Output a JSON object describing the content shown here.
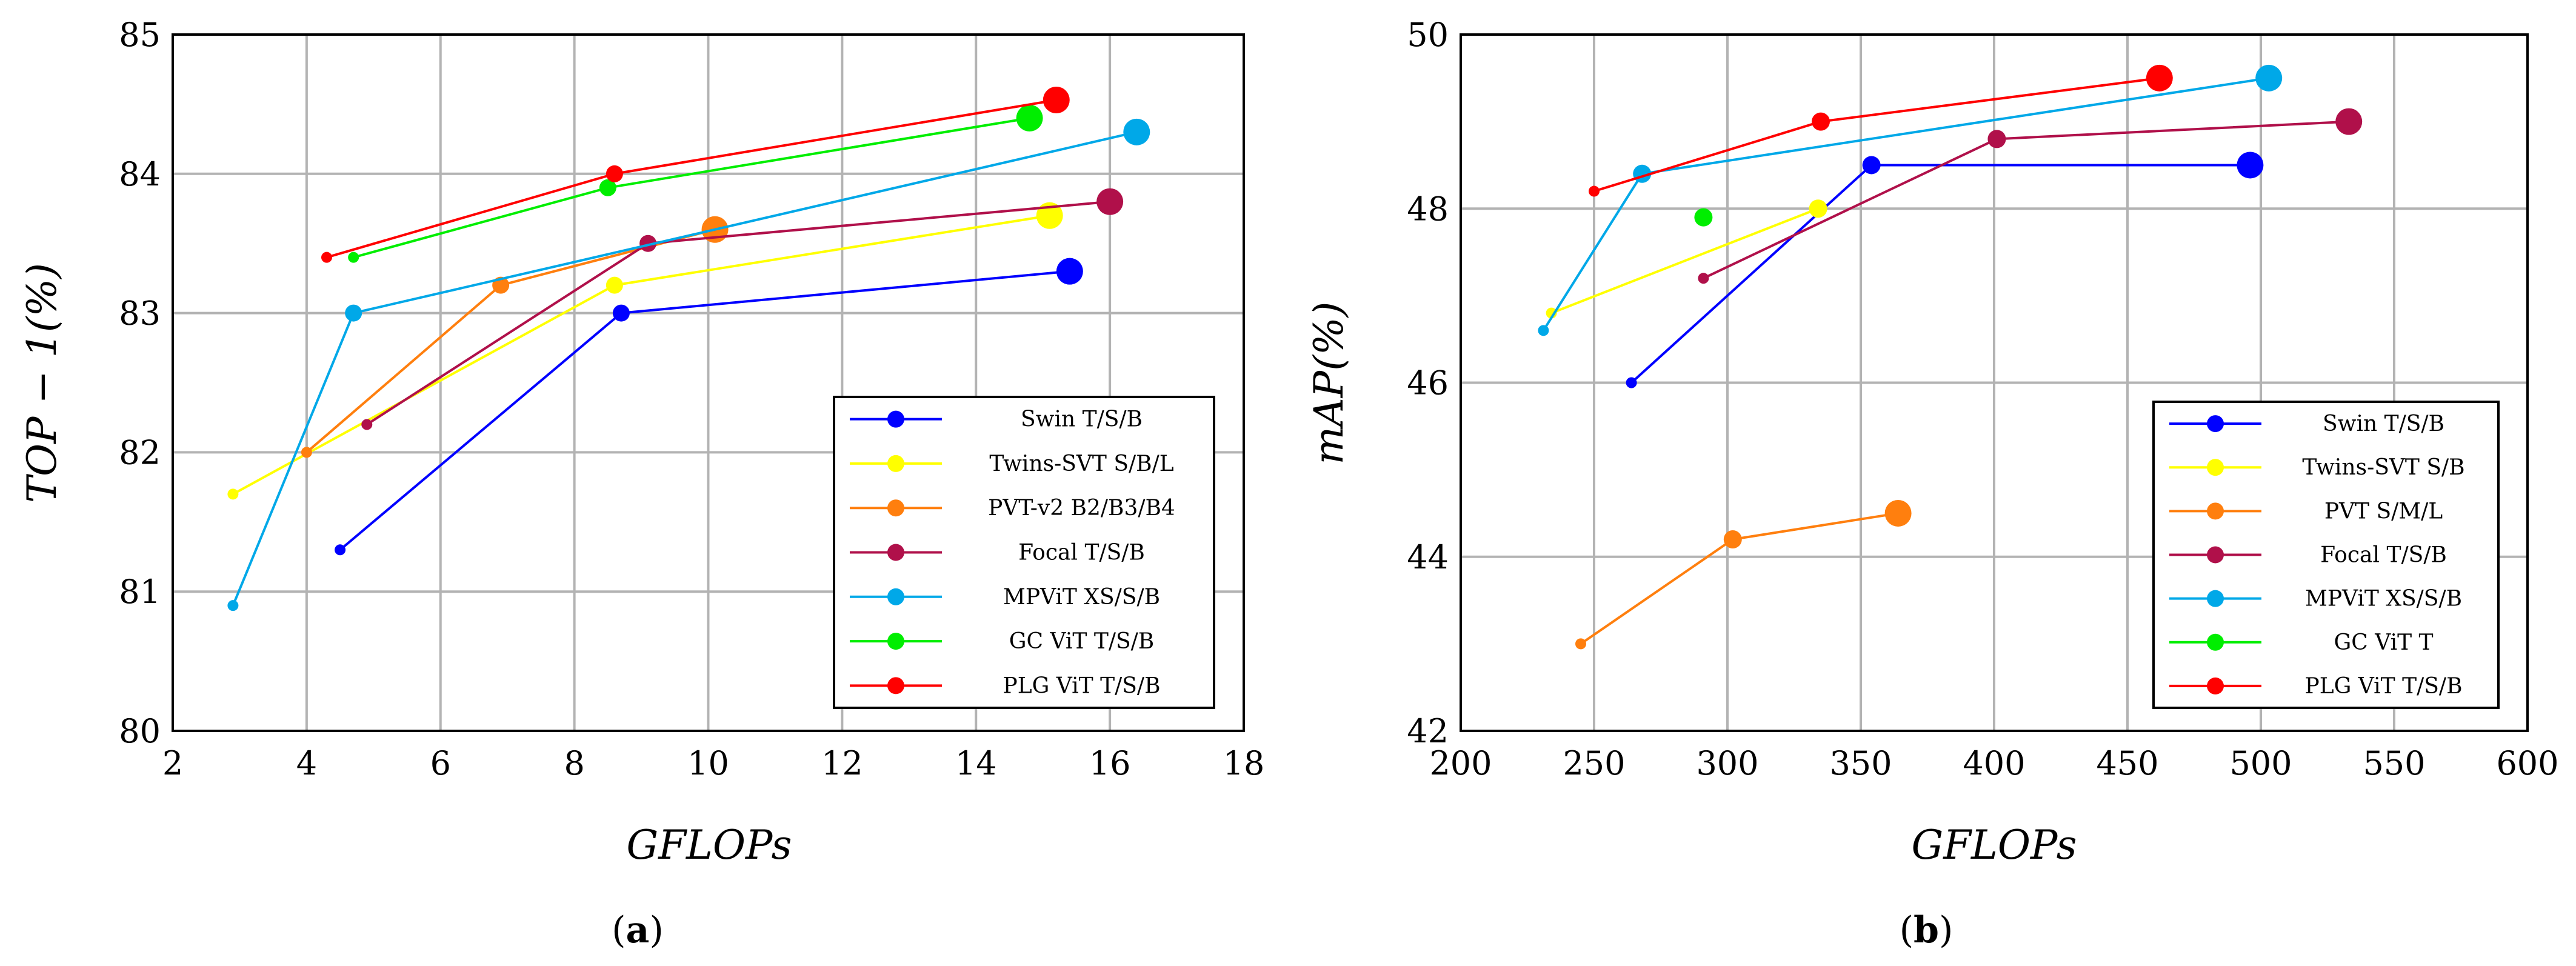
{
  "chart_data": [
    {
      "type": "line",
      "panel": "a",
      "xlabel": "GFLOPs",
      "ylabel": "TOP − 1(%)",
      "xlim": [
        2,
        18
      ],
      "ylim": [
        80,
        85
      ],
      "xticks": [
        2,
        4,
        6,
        8,
        10,
        12,
        14,
        16,
        18
      ],
      "yticks": [
        80,
        81,
        82,
        83,
        84,
        85
      ],
      "grid": true,
      "legend_position": "bottom-right",
      "series": [
        {
          "name": "Swin T/S/B",
          "color": "#0000ff",
          "points": [
            [
              4.5,
              81.3
            ],
            [
              8.7,
              83.0
            ],
            [
              15.4,
              83.3
            ]
          ]
        },
        {
          "name": "Twins-SVT S/B/L",
          "color": "#ffff00",
          "points": [
            [
              2.9,
              81.7
            ],
            [
              8.6,
              83.2
            ],
            [
              15.1,
              83.7
            ]
          ]
        },
        {
          "name": "PVT-v2 B2/B3/B4",
          "color": "#ff7f0e",
          "points": [
            [
              4.0,
              82.0
            ],
            [
              6.9,
              83.2
            ],
            [
              10.1,
              83.6
            ]
          ]
        },
        {
          "name": "Focal T/S/B",
          "color": "#b0104a",
          "points": [
            [
              4.9,
              82.2
            ],
            [
              9.1,
              83.5
            ],
            [
              16.0,
              83.8
            ]
          ]
        },
        {
          "name": "MPViT XS/S/B",
          "color": "#00a8e8",
          "points": [
            [
              2.9,
              80.9
            ],
            [
              4.7,
              83.0
            ],
            [
              16.4,
              84.3
            ]
          ]
        },
        {
          "name": "GC ViT T/S/B",
          "color": "#00ee00",
          "points": [
            [
              4.7,
              83.4
            ],
            [
              8.5,
              83.9
            ],
            [
              14.8,
              84.4
            ]
          ]
        },
        {
          "name": "PLG ViT T/S/B",
          "color": "#ff0000",
          "points": [
            [
              4.3,
              83.4
            ],
            [
              8.6,
              84.0
            ],
            [
              15.2,
              84.53
            ]
          ]
        }
      ]
    },
    {
      "type": "line",
      "panel": "b",
      "xlabel": "GFLOPs",
      "ylabel": "mAP(%)",
      "xlim": [
        200,
        600
      ],
      "ylim": [
        42,
        50
      ],
      "xticks": [
        200,
        250,
        300,
        350,
        400,
        450,
        500,
        550,
        600
      ],
      "yticks": [
        42,
        44,
        46,
        48,
        50
      ],
      "grid": true,
      "legend_position": "bottom-right",
      "series": [
        {
          "name": "Swin T/S/B",
          "color": "#0000ff",
          "points": [
            [
              264,
              46.0
            ],
            [
              354,
              48.5
            ],
            [
              496,
              48.5
            ]
          ]
        },
        {
          "name": "Twins-SVT S/B",
          "color": "#ffff00",
          "points": [
            [
              234,
              46.8
            ],
            [
              334,
              48.0
            ]
          ]
        },
        {
          "name": "PVT S/M/L",
          "color": "#ff7f0e",
          "points": [
            [
              245,
              43.0
            ],
            [
              302,
              44.2
            ],
            [
              364,
              44.5
            ]
          ]
        },
        {
          "name": "Focal T/S/B",
          "color": "#b0104a",
          "points": [
            [
              291,
              47.2
            ],
            [
              401,
              48.8
            ],
            [
              533,
              49.0
            ]
          ]
        },
        {
          "name": "MPViT XS/S/B",
          "color": "#00a8e8",
          "points": [
            [
              231,
              46.6
            ],
            [
              268,
              48.4
            ],
            [
              503,
              49.5
            ]
          ]
        },
        {
          "name": "GC ViT T",
          "color": "#00ee00",
          "points": [
            [
              291,
              47.9
            ]
          ]
        },
        {
          "name": "PLG ViT T/S/B",
          "color": "#ff0000",
          "points": [
            [
              250,
              48.2
            ],
            [
              335,
              49.0
            ],
            [
              462,
              49.5
            ]
          ]
        }
      ]
    }
  ],
  "panels": {
    "a": {
      "letter": "a"
    },
    "b": {
      "letter": "b"
    }
  }
}
